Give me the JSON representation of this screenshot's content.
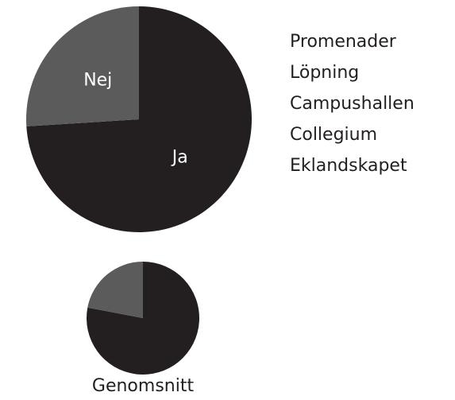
{
  "chart_data": [
    {
      "type": "pie",
      "categories": [
        "Ja",
        "Nej"
      ],
      "values": [
        74,
        26
      ],
      "colors": [
        "#231f20",
        "#5b5b5b"
      ]
    },
    {
      "type": "pie",
      "title": "Genomsnitt",
      "categories": [
        null,
        null
      ],
      "values": [
        78,
        22
      ],
      "colors": [
        "#231f20",
        "#5b5b5b"
      ]
    }
  ],
  "list": [
    "Promenader",
    "Löpning",
    "Campushallen",
    "Collegium",
    "Eklandskapet"
  ]
}
